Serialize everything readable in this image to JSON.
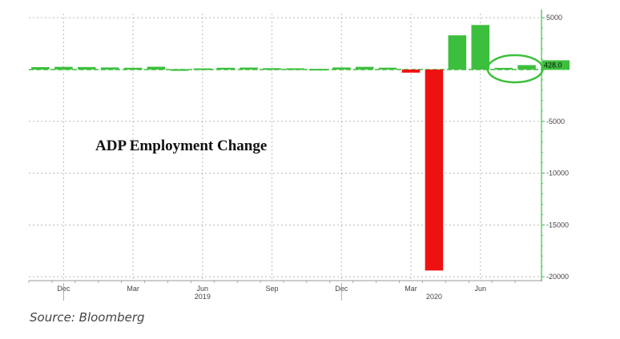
{
  "chart_data": {
    "type": "bar",
    "title": "ADP Employment Change",
    "xlabel": "",
    "ylabel": "",
    "months": [
      "2018-11",
      "2018-12",
      "2019-01",
      "2019-02",
      "2019-03",
      "2019-04",
      "2019-05",
      "2019-06",
      "2019-07",
      "2019-08",
      "2019-09",
      "2019-10",
      "2019-11",
      "2019-12",
      "2020-01",
      "2020-02",
      "2020-03",
      "2020-04",
      "2020-05",
      "2020-06",
      "2020-07",
      "2020-08"
    ],
    "values": [
      230,
      260,
      240,
      200,
      170,
      270,
      30,
      110,
      170,
      190,
      130,
      120,
      60,
      200,
      260,
      180,
      -300,
      -19400,
      3300,
      4300,
      160,
      428
    ],
    "x_ticks": [
      {
        "month": "2018-12",
        "label": "Dec",
        "year": ""
      },
      {
        "month": "2019-03",
        "label": "Mar",
        "year": ""
      },
      {
        "month": "2019-06",
        "label": "Jun",
        "year": "2019"
      },
      {
        "month": "2019-09",
        "label": "Sep",
        "year": ""
      },
      {
        "month": "2019-12",
        "label": "Dec",
        "year": ""
      },
      {
        "month": "2020-03",
        "label": "Mar",
        "year": ""
      },
      {
        "month": "2020-04",
        "label": "",
        "year": "2020"
      },
      {
        "month": "2020-06",
        "label": "Jun",
        "year": ""
      }
    ],
    "y_ticks": [
      5000,
      0,
      -5000,
      -10000,
      -15000,
      -20000
    ],
    "y_tick_labels": [
      "5000",
      "",
      "-5000",
      "-10000",
      "-15000",
      "-20000"
    ],
    "ylim": [
      -20300,
      5400
    ],
    "last_value_label": "428.0",
    "highlighted_months": [
      "2020-07",
      "2020-08"
    ],
    "grid": true,
    "y_axis_side": "right",
    "colors": {
      "positive": "#3cbf3c",
      "negative": "#ee1111",
      "axis": "#3cbf3c"
    }
  },
  "source_text": "Source: Bloomberg"
}
